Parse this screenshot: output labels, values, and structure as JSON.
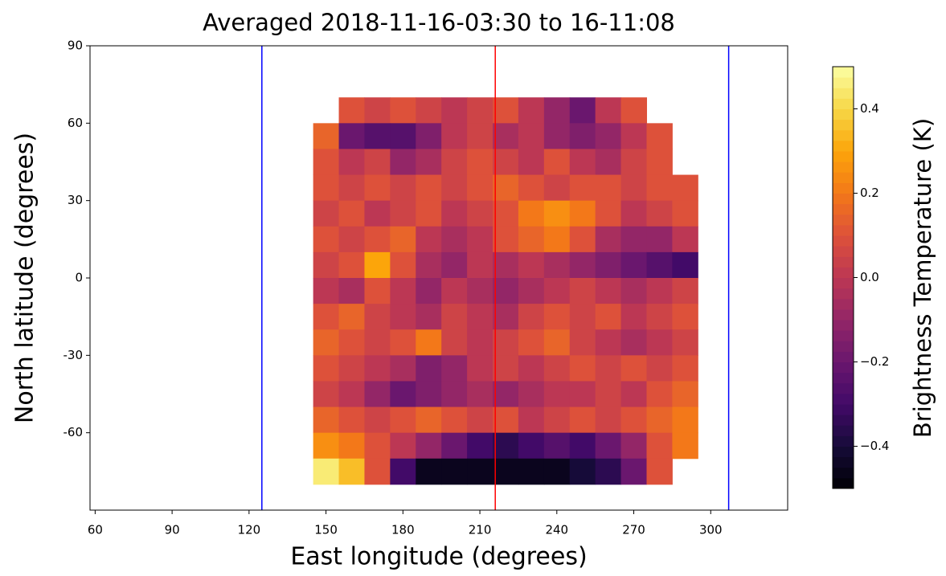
{
  "chart_data": {
    "type": "heatmap",
    "title": "Averaged 2018-11-16-03:30 to 16-11:08",
    "x_label": "East longitude (degrees)",
    "y_label": "North latitude (degrees)",
    "colorbar_label": "Brightness Temperature (K)",
    "colormap": "inferno",
    "xlim": [
      58,
      330
    ],
    "xticks": [
      60,
      90,
      120,
      150,
      180,
      210,
      240,
      270,
      300
    ],
    "ylim": [
      -90,
      90
    ],
    "yticks": [
      90,
      60,
      30,
      0,
      -30,
      -60
    ],
    "clim": [
      -0.5,
      0.5
    ],
    "cticks": [
      0.4,
      0.2,
      {
        "value": 0,
        "label": "0.0"
      },
      {
        "value": -0.2,
        "label": "−0.2"
      },
      {
        "value": -0.4,
        "label": "−0.4"
      }
    ],
    "vlines": [
      {
        "x": 125,
        "color": "#0000ff"
      },
      {
        "x": 216,
        "color": "#ff0000"
      },
      {
        "x": 307,
        "color": "#0000ff"
      }
    ],
    "x": [
      150,
      160,
      170,
      180,
      190,
      200,
      210,
      220,
      230,
      240,
      250,
      260,
      270,
      280,
      290
    ],
    "y": [
      65,
      55,
      45,
      35,
      25,
      15,
      5,
      -5,
      -15,
      -25,
      -35,
      -45,
      -55,
      -65,
      -75
    ],
    "z": [
      [
        null,
        0.1,
        0.05,
        0.1,
        0.05,
        0.0,
        0.05,
        0.1,
        0.0,
        -0.1,
        -0.2,
        0.0,
        0.1,
        null,
        null
      ],
      [
        0.15,
        -0.2,
        -0.25,
        -0.25,
        -0.15,
        0.0,
        0.05,
        -0.05,
        0.0,
        -0.1,
        -0.15,
        -0.1,
        0.0,
        0.1,
        null
      ],
      [
        0.1,
        0.0,
        0.05,
        -0.1,
        -0.05,
        0.05,
        0.1,
        0.05,
        0.0,
        0.1,
        0.0,
        -0.05,
        0.05,
        0.1,
        null
      ],
      [
        0.1,
        0.05,
        0.1,
        0.05,
        0.1,
        0.05,
        0.1,
        0.15,
        0.1,
        0.05,
        0.1,
        0.1,
        0.05,
        0.1,
        0.1
      ],
      [
        0.05,
        0.1,
        0.0,
        0.05,
        0.1,
        0.0,
        0.05,
        0.1,
        0.2,
        0.25,
        0.2,
        0.1,
        0.0,
        0.05,
        0.1
      ],
      [
        0.1,
        0.05,
        0.1,
        0.15,
        0.0,
        -0.05,
        0.0,
        0.1,
        0.15,
        0.2,
        0.1,
        -0.05,
        -0.1,
        -0.1,
        0.0
      ],
      [
        0.05,
        0.1,
        0.3,
        0.1,
        -0.05,
        -0.1,
        0.0,
        -0.05,
        0.0,
        -0.05,
        -0.1,
        -0.15,
        -0.2,
        -0.25,
        -0.3
      ],
      [
        0.0,
        -0.05,
        0.1,
        0.0,
        -0.1,
        0.0,
        -0.05,
        -0.1,
        -0.05,
        0.0,
        0.05,
        0.0,
        -0.05,
        0.0,
        0.05
      ],
      [
        0.1,
        0.15,
        0.05,
        0.0,
        -0.05,
        0.05,
        0.0,
        -0.05,
        0.05,
        0.1,
        0.05,
        0.1,
        0.0,
        0.05,
        0.1
      ],
      [
        0.15,
        0.1,
        0.05,
        0.1,
        0.2,
        0.05,
        0.0,
        0.05,
        0.1,
        0.15,
        0.05,
        0.0,
        -0.05,
        0.0,
        0.05
      ],
      [
        0.1,
        0.05,
        0.0,
        -0.05,
        -0.15,
        -0.1,
        0.0,
        0.05,
        0.0,
        0.05,
        0.1,
        0.05,
        0.1,
        0.05,
        0.1
      ],
      [
        0.05,
        0.0,
        -0.1,
        -0.2,
        -0.15,
        -0.1,
        -0.05,
        -0.1,
        -0.05,
        0.0,
        0.0,
        0.05,
        0.0,
        0.1,
        0.15
      ],
      [
        0.15,
        0.1,
        0.05,
        0.1,
        0.15,
        0.1,
        0.05,
        0.1,
        0.0,
        0.05,
        0.1,
        0.05,
        0.1,
        0.15,
        0.2
      ],
      [
        0.25,
        0.2,
        0.1,
        0.0,
        -0.1,
        -0.2,
        -0.3,
        -0.35,
        -0.3,
        -0.25,
        -0.3,
        -0.2,
        -0.1,
        0.1,
        0.2
      ],
      [
        0.45,
        0.35,
        0.1,
        -0.3,
        -0.45,
        -0.45,
        -0.45,
        -0.45,
        -0.45,
        -0.45,
        -0.4,
        -0.35,
        -0.2,
        0.1,
        null
      ]
    ]
  }
}
